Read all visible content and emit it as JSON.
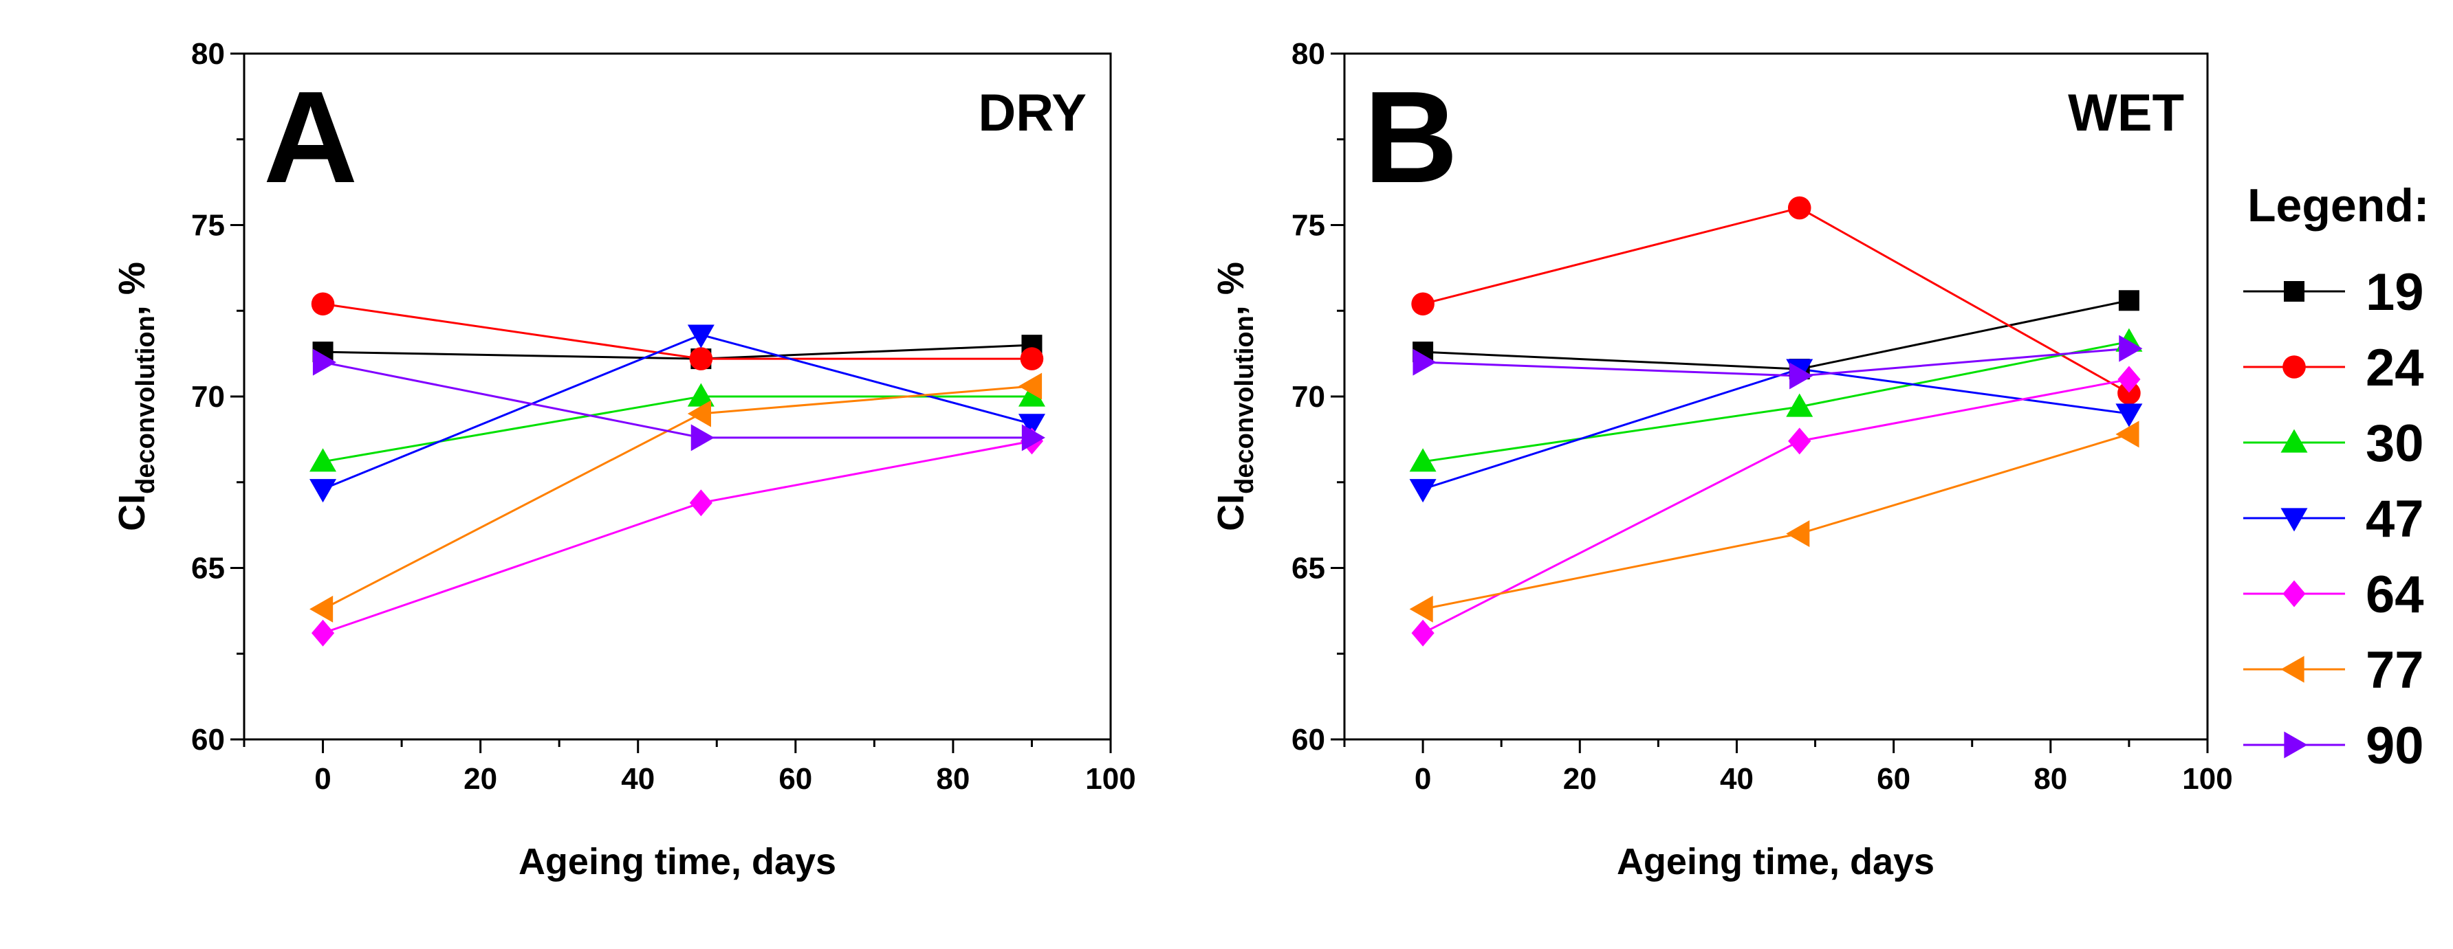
{
  "chart_data": [
    {
      "type": "line",
      "panel_label": "A",
      "condition": "DRY",
      "xlabel": "Ageing time, days",
      "ylabel_main": "CI",
      "ylabel_sub": "deconvolution",
      "ylabel_suffix": ", %",
      "xlim": [
        -10,
        100
      ],
      "ylim": [
        60,
        80
      ],
      "xticks": [
        0,
        20,
        40,
        60,
        80,
        100
      ],
      "xtick_labels": [
        "0",
        "20",
        "40",
        "60",
        "80",
        "100"
      ],
      "yticks": [
        60,
        65,
        70,
        75,
        80
      ],
      "ytick_labels": [
        "60",
        "65",
        "70",
        "75",
        "80"
      ],
      "x": [
        0,
        48,
        90
      ],
      "series": [
        {
          "name": "19",
          "values": [
            71.3,
            71.1,
            71.5
          ]
        },
        {
          "name": "24",
          "values": [
            72.7,
            71.1,
            71.1
          ]
        },
        {
          "name": "30",
          "values": [
            68.1,
            70.0,
            70.0
          ]
        },
        {
          "name": "47",
          "values": [
            67.3,
            71.8,
            69.2
          ]
        },
        {
          "name": "64",
          "values": [
            63.1,
            66.9,
            68.7
          ]
        },
        {
          "name": "77",
          "values": [
            63.8,
            69.5,
            70.3
          ]
        },
        {
          "name": "90",
          "values": [
            71.0,
            68.8,
            68.8
          ]
        }
      ]
    },
    {
      "type": "line",
      "panel_label": "B",
      "condition": "WET",
      "xlabel": "Ageing time, days",
      "ylabel_main": "CI",
      "ylabel_sub": "deconvolution",
      "ylabel_suffix": ", %",
      "xlim": [
        -10,
        100
      ],
      "ylim": [
        60,
        80
      ],
      "xticks": [
        0,
        20,
        40,
        60,
        80,
        100
      ],
      "xtick_labels": [
        "0",
        "20",
        "40",
        "60",
        "80",
        "100"
      ],
      "yticks": [
        60,
        65,
        70,
        75,
        80
      ],
      "ytick_labels": [
        "60",
        "65",
        "70",
        "75",
        "80"
      ],
      "x": [
        0,
        48,
        90
      ],
      "series": [
        {
          "name": "19",
          "values": [
            71.3,
            70.8,
            72.8
          ]
        },
        {
          "name": "24",
          "values": [
            72.7,
            75.5,
            70.1
          ]
        },
        {
          "name": "30",
          "values": [
            68.1,
            69.7,
            71.6
          ]
        },
        {
          "name": "47",
          "values": [
            67.3,
            70.8,
            69.5
          ]
        },
        {
          "name": "64",
          "values": [
            63.1,
            68.7,
            70.5
          ]
        },
        {
          "name": "77",
          "values": [
            63.8,
            66.0,
            68.9
          ]
        },
        {
          "name": "90",
          "values": [
            71.0,
            70.6,
            71.4
          ]
        }
      ]
    }
  ],
  "legend": {
    "title": "Legend:",
    "entries": [
      {
        "label": "19",
        "color": "#000000",
        "marker": "square"
      },
      {
        "label": "24",
        "color": "#ff0000",
        "marker": "circle"
      },
      {
        "label": "30",
        "color": "#00e000",
        "marker": "triangle-up"
      },
      {
        "label": "47",
        "color": "#0000ff",
        "marker": "triangle-down"
      },
      {
        "label": "64",
        "color": "#ff00ff",
        "marker": "diamond"
      },
      {
        "label": "77",
        "color": "#ff8000",
        "marker": "triangle-left"
      },
      {
        "label": "90",
        "color": "#8000ff",
        "marker": "triangle-right"
      }
    ]
  }
}
